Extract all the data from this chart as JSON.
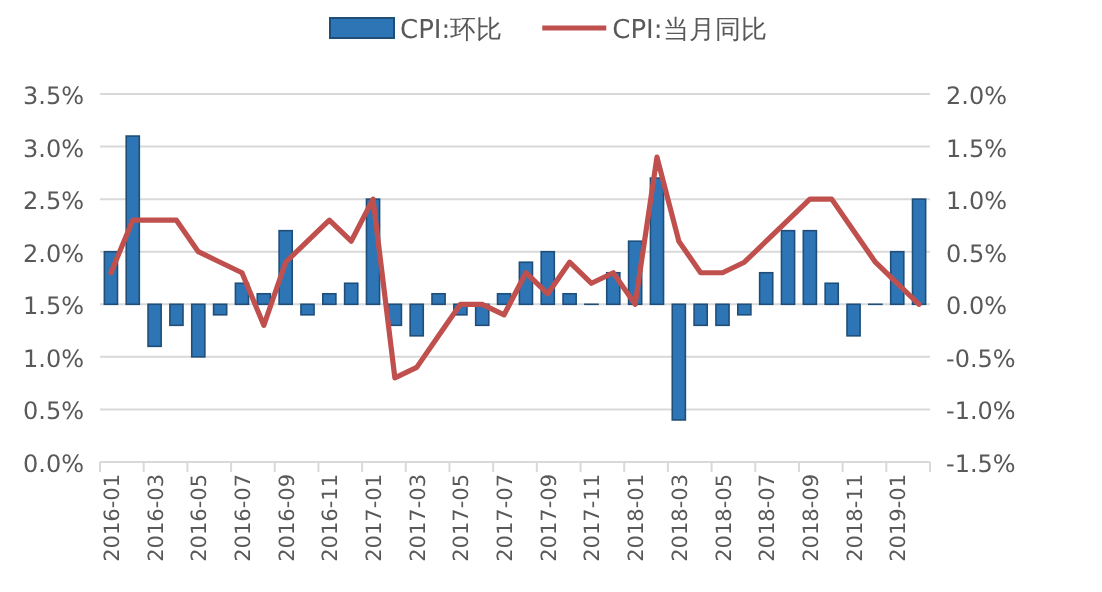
{
  "chart_data": {
    "type": "bar",
    "categories": [
      "2016-01",
      null,
      "2016-03",
      null,
      "2016-05",
      null,
      "2016-07",
      null,
      "2016-09",
      null,
      "2016-11",
      null,
      "2017-01",
      null,
      "2017-03",
      null,
      "2017-05",
      null,
      "2017-07",
      null,
      "2017-09",
      null,
      "2017-11",
      null,
      "2018-01",
      null,
      "2018-03",
      null,
      "2018-05",
      null,
      "2018-07",
      null,
      "2018-09",
      null,
      "2018-11",
      null,
      "2019-01",
      null
    ],
    "series": [
      {
        "name": "CPI:环比",
        "axis": "y2",
        "color": "#2e75b6",
        "values": [
          0.5,
          1.6,
          -0.4,
          -0.2,
          -0.5,
          -0.1,
          0.2,
          0.1,
          0.7,
          -0.1,
          0.1,
          0.2,
          1.0,
          -0.2,
          -0.3,
          0.1,
          -0.1,
          -0.2,
          0.1,
          0.4,
          0.5,
          0.1,
          0.0,
          0.3,
          0.6,
          1.2,
          -1.1,
          -0.2,
          -0.2,
          -0.1,
          0.3,
          0.7,
          0.7,
          0.2,
          -0.3,
          0.0,
          0.5,
          1.0
        ]
      },
      {
        "name": "CPI:当月同比",
        "type": "line",
        "color": "#c0504d",
        "values": [
          1.8,
          2.3,
          2.3,
          2.3,
          2.0,
          1.9,
          1.8,
          1.3,
          1.9,
          2.1,
          2.3,
          2.1,
          2.5,
          0.8,
          0.9,
          1.2,
          1.5,
          1.5,
          1.4,
          1.8,
          1.6,
          1.9,
          1.7,
          1.8,
          1.5,
          2.9,
          2.1,
          1.8,
          1.8,
          1.9,
          2.1,
          2.3,
          2.5,
          2.5,
          2.2,
          1.9,
          1.7,
          1.5
        ]
      }
    ],
    "ylim": [
      0,
      3.5
    ],
    "yticks": [
      {
        "value": 0,
        "label": "0.0%"
      },
      {
        "value": 0.5,
        "label": "0.5%"
      },
      {
        "value": 1,
        "label": "1.0%"
      },
      {
        "value": 1.5,
        "label": "1.5%"
      },
      {
        "value": 2,
        "label": "2.0%"
      },
      {
        "value": 2.5,
        "label": "2.5%"
      },
      {
        "value": 3,
        "label": "3.0%"
      },
      {
        "value": 3.5,
        "label": "3.5%"
      }
    ],
    "y2lim": [
      -1.5,
      2.0
    ],
    "y2ticks": [
      {
        "value": -1.5,
        "label": "-1.5%"
      },
      {
        "value": -1,
        "label": "-1.0%"
      },
      {
        "value": -0.5,
        "label": "-0.5%"
      },
      {
        "value": 0,
        "label": "0.0%"
      },
      {
        "value": 0.5,
        "label": "0.5%"
      },
      {
        "value": 1,
        "label": "1.0%"
      },
      {
        "value": 1.5,
        "label": "1.5%"
      },
      {
        "value": 2,
        "label": "2.0%"
      }
    ],
    "grid": "y",
    "legend": "top"
  }
}
